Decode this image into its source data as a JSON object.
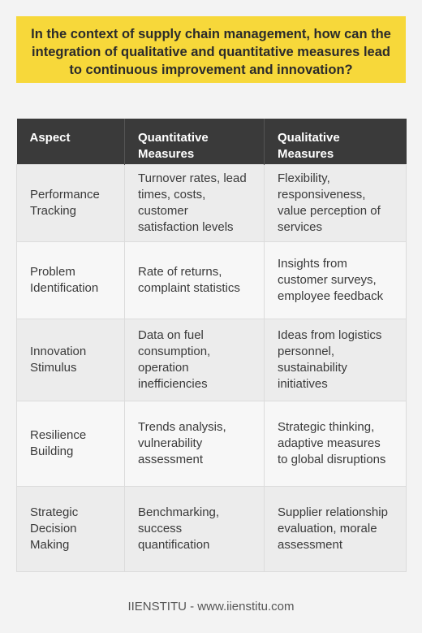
{
  "question": "In the context of supply chain management, how can the integration of qualitative and quantitative measures lead to continuous improvement and innovation?",
  "table": {
    "headers": [
      "Aspect",
      "Quantitative Measures",
      "Qualitative Measures"
    ],
    "rows": [
      [
        "Performance Tracking",
        "Turnover rates, lead times, costs, customer satisfaction levels",
        "Flexibility, responsiveness, value perception of services"
      ],
      [
        "Problem Identification",
        "Rate of returns, complaint statistics",
        "Insights from customer surveys, employee feedback"
      ],
      [
        "Innovation Stimulus",
        "Data on fuel consumption, operation inefficiencies",
        "Ideas from logistics personnel, sustainability initiatives"
      ],
      [
        "Resilience Building",
        "Trends analysis, vulnerability assessment",
        "Strategic thinking, adaptive measures to global disruptions"
      ],
      [
        "Strategic Decision Making",
        "Benchmarking, success quantification",
        "Supplier relationship evaluation, morale assessment"
      ]
    ]
  },
  "footer": "IIENSTITU - www.iienstitu.com"
}
